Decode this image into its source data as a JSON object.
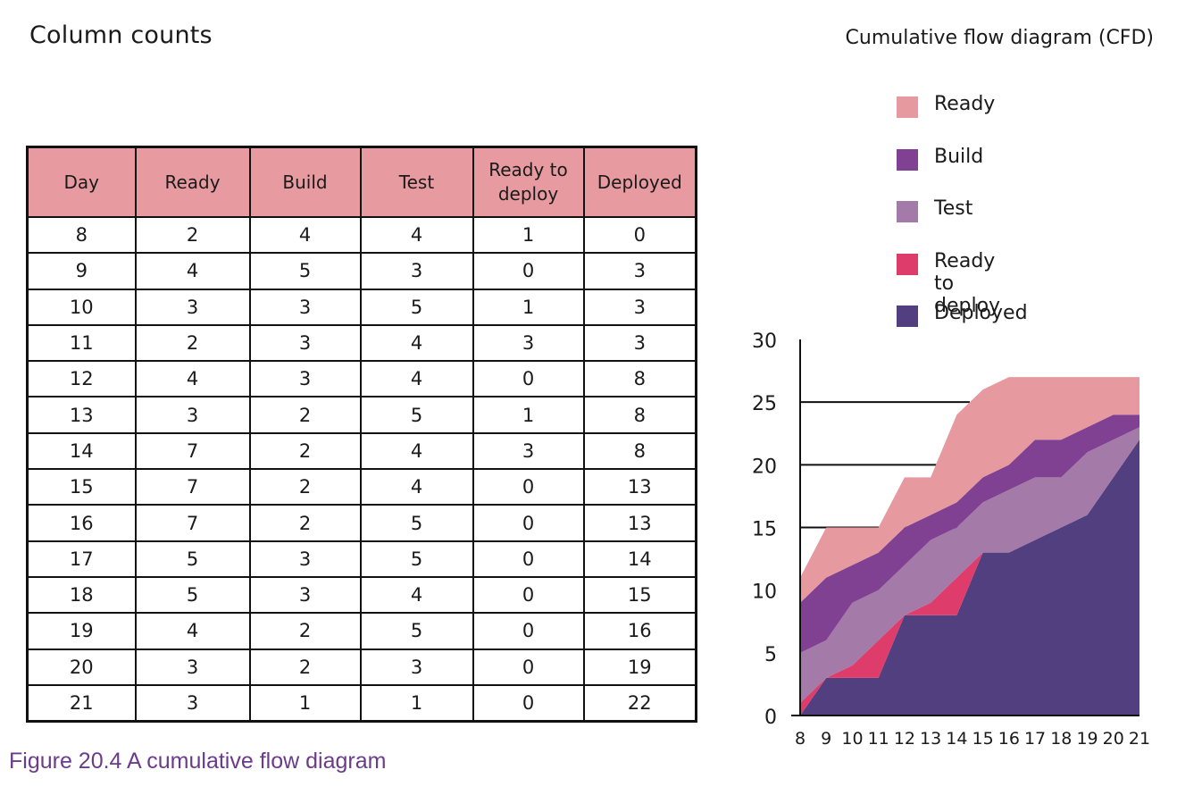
{
  "table": {
    "title": "Column counts",
    "headers": [
      "Day",
      "Ready",
      "Build",
      "Test",
      "Ready to deploy",
      "Deployed"
    ],
    "rows": [
      [
        8,
        2,
        4,
        4,
        1,
        0
      ],
      [
        9,
        4,
        5,
        3,
        0,
        3
      ],
      [
        10,
        3,
        3,
        5,
        1,
        3
      ],
      [
        11,
        2,
        3,
        4,
        3,
        3
      ],
      [
        12,
        4,
        3,
        4,
        0,
        8
      ],
      [
        13,
        3,
        2,
        5,
        1,
        8
      ],
      [
        14,
        7,
        2,
        4,
        3,
        8
      ],
      [
        15,
        7,
        2,
        4,
        0,
        13
      ],
      [
        16,
        7,
        2,
        5,
        0,
        13
      ],
      [
        17,
        5,
        3,
        5,
        0,
        14
      ],
      [
        18,
        5,
        3,
        4,
        0,
        15
      ],
      [
        19,
        4,
        2,
        5,
        0,
        16
      ],
      [
        20,
        3,
        2,
        3,
        0,
        19
      ],
      [
        21,
        3,
        1,
        1,
        0,
        22
      ]
    ]
  },
  "caption": "Figure 20.4  A cumulative flow diagram",
  "chart_data": {
    "type": "area",
    "title": "Cumulative flow diagram (CFD)",
    "stacked": true,
    "x": [
      8,
      9,
      10,
      11,
      12,
      13,
      14,
      15,
      16,
      17,
      18,
      19,
      20,
      21
    ],
    "ylim": [
      0,
      30
    ],
    "yticks": [
      0,
      5,
      10,
      15,
      20,
      25,
      30
    ],
    "gridlines": [
      15,
      20,
      25
    ],
    "legend_position": "top",
    "series": [
      {
        "name": "Deployed",
        "color": "#523f80",
        "values": [
          0,
          3,
          3,
          3,
          8,
          8,
          8,
          13,
          13,
          14,
          15,
          16,
          19,
          22
        ]
      },
      {
        "name": "Ready to deploy",
        "color": "#de3d6b",
        "values": [
          1,
          0,
          1,
          3,
          0,
          1,
          3,
          0,
          0,
          0,
          0,
          0,
          0,
          0
        ]
      },
      {
        "name": "Test",
        "color": "#a47aa8",
        "values": [
          4,
          3,
          5,
          4,
          4,
          5,
          4,
          4,
          5,
          5,
          4,
          5,
          3,
          1
        ]
      },
      {
        "name": "Build",
        "color": "#804192",
        "values": [
          4,
          5,
          3,
          3,
          3,
          2,
          2,
          2,
          2,
          3,
          3,
          2,
          2,
          1
        ]
      },
      {
        "name": "Ready",
        "color": "#e69aa0",
        "values": [
          2,
          4,
          3,
          2,
          4,
          3,
          7,
          7,
          7,
          5,
          5,
          4,
          3,
          3
        ]
      }
    ],
    "legend_order": [
      "Ready",
      "Build",
      "Test",
      "Ready to deploy",
      "Deployed"
    ]
  }
}
